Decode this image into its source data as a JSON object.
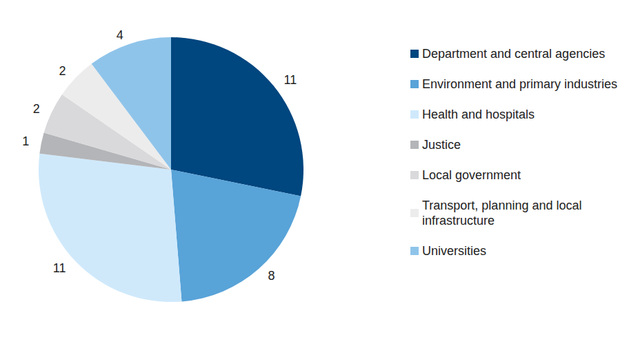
{
  "chart_data": {
    "type": "pie",
    "categories": [
      "Department and central agencies",
      "Environment and primary industries",
      "Health and hospitals",
      "Justice",
      "Local government",
      "Transport, planning and local infrastructure",
      "Universities"
    ],
    "values": [
      11,
      8,
      11,
      1,
      2,
      2,
      4
    ],
    "colors": [
      "#00467f",
      "#58a3d8",
      "#cfe9fb",
      "#b4b5b8",
      "#d9d9db",
      "#ececec",
      "#8fc4ea"
    ],
    "data_labels": true,
    "legend": "right"
  }
}
